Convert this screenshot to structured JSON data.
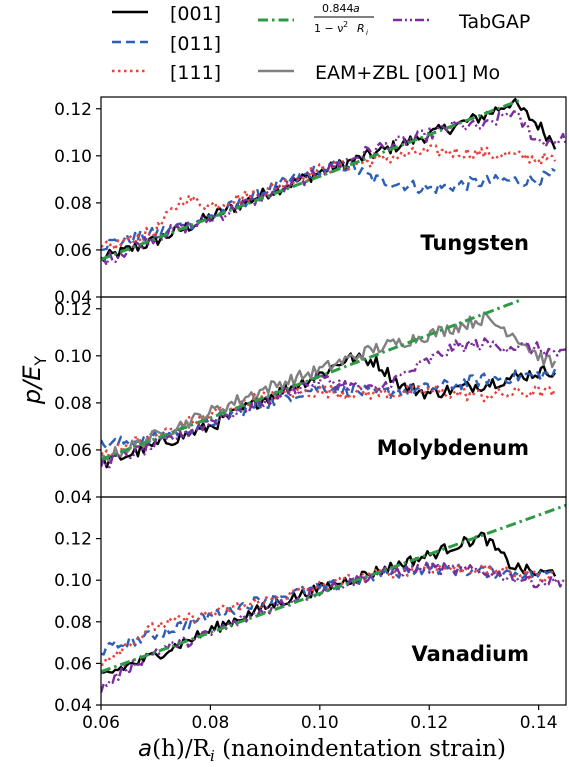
{
  "figure": {
    "ylabel": "p/E",
    "ylabel_sub": "Y",
    "xlabel_main": "a",
    "xlabel_rest": "(h)/R",
    "xlabel_sub": "i",
    "xlabel_tail": " (nanoindentation strain)"
  },
  "legend": {
    "items": [
      {
        "label": "[001]",
        "color": "#000000",
        "dash": "solid"
      },
      {
        "label": "[011]",
        "color": "#2d5fb5",
        "dash": "dashed"
      },
      {
        "label": "[111]",
        "color": "#e8413a",
        "dash": "dotted"
      },
      {
        "label": "",
        "color": "#2e9a44",
        "dash": "dashdot",
        "formula": {
          "num": "0.844",
          "var_num": "a",
          "den": "1 − ν",
          "sup": "2",
          "var_den": "R",
          "var_den_sub": "i"
        }
      },
      {
        "label": "EAM+ZBL [001] Mo",
        "color": "#808080",
        "dash": "solid"
      },
      {
        "label": "TabGAP",
        "color": "#7b2d9b",
        "dash": "dashdotdot"
      }
    ]
  },
  "chart_data": [
    {
      "type": "line",
      "label": "Tungsten",
      "xlim": [
        0.06,
        0.145
      ],
      "ylim": [
        0.04,
        0.125
      ],
      "yticks": [
        "0.04",
        "0.06",
        "0.08",
        "0.10",
        "0.12"
      ],
      "series": [
        {
          "name": "[001]",
          "color": "#000000",
          "dash": "solid",
          "x": [
            0.06,
            0.07,
            0.08,
            0.09,
            0.1,
            0.11,
            0.12,
            0.13,
            0.135,
            0.14,
            0.143
          ],
          "y": [
            0.056,
            0.064,
            0.074,
            0.084,
            0.093,
            0.101,
            0.109,
            0.117,
            0.123,
            0.113,
            0.105
          ]
        },
        {
          "name": "[011]",
          "color": "#2d5fb5",
          "dash": "dashed",
          "x": [
            0.06,
            0.07,
            0.08,
            0.09,
            0.1,
            0.105,
            0.11,
            0.12,
            0.13,
            0.14,
            0.143
          ],
          "y": [
            0.062,
            0.067,
            0.074,
            0.085,
            0.094,
            0.096,
            0.09,
            0.086,
            0.089,
            0.09,
            0.092
          ]
        },
        {
          "name": "[111]",
          "color": "#e8413a",
          "dash": "dotted",
          "x": [
            0.06,
            0.07,
            0.075,
            0.08,
            0.09,
            0.1,
            0.11,
            0.12,
            0.13,
            0.14,
            0.143
          ],
          "y": [
            0.06,
            0.068,
            0.082,
            0.079,
            0.085,
            0.094,
            0.098,
            0.102,
            0.101,
            0.099,
            0.098
          ]
        },
        {
          "name": "TabGAP",
          "color": "#7b2d9b",
          "dash": "dashdotdot",
          "x": [
            0.06,
            0.065,
            0.07,
            0.08,
            0.09,
            0.1,
            0.11,
            0.12,
            0.125,
            0.13,
            0.135,
            0.14,
            0.145
          ],
          "y": [
            0.055,
            0.06,
            0.066,
            0.073,
            0.083,
            0.093,
            0.103,
            0.109,
            0.113,
            0.112,
            0.119,
            0.106,
            0.107
          ]
        },
        {
          "name": "fit",
          "color": "#2e9a44",
          "dash": "dashdot",
          "x": [
            0.06,
            0.137
          ],
          "y": [
            0.056,
            0.124
          ]
        }
      ]
    },
    {
      "type": "line",
      "label": "Molybdenum",
      "xlim": [
        0.06,
        0.145
      ],
      "ylim": [
        0.04,
        0.125
      ],
      "yticks": [
        "0.04",
        "0.06",
        "0.08",
        "0.10",
        "0.12"
      ],
      "series": [
        {
          "name": "[001]",
          "color": "#000000",
          "dash": "solid",
          "x": [
            0.06,
            0.07,
            0.08,
            0.09,
            0.1,
            0.105,
            0.11,
            0.115,
            0.12,
            0.13,
            0.14,
            0.143
          ],
          "y": [
            0.054,
            0.062,
            0.07,
            0.082,
            0.092,
            0.099,
            0.098,
            0.087,
            0.084,
            0.088,
            0.093,
            0.094
          ]
        },
        {
          "name": "[011]",
          "color": "#2d5fb5",
          "dash": "dashed",
          "x": [
            0.06,
            0.07,
            0.08,
            0.09,
            0.1,
            0.11,
            0.12,
            0.13,
            0.14,
            0.143
          ],
          "y": [
            0.062,
            0.065,
            0.072,
            0.08,
            0.087,
            0.084,
            0.086,
            0.09,
            0.092,
            0.092
          ]
        },
        {
          "name": "[111]",
          "color": "#e8413a",
          "dash": "dotted",
          "x": [
            0.06,
            0.07,
            0.08,
            0.09,
            0.1,
            0.11,
            0.12,
            0.13,
            0.14,
            0.143
          ],
          "y": [
            0.058,
            0.066,
            0.075,
            0.083,
            0.085,
            0.084,
            0.085,
            0.083,
            0.085,
            0.084
          ]
        },
        {
          "name": "EAM+ZBL [001] Mo",
          "color": "#808080",
          "dash": "solid",
          "x": [
            0.06,
            0.07,
            0.08,
            0.09,
            0.1,
            0.11,
            0.12,
            0.13,
            0.135,
            0.14,
            0.143
          ],
          "y": [
            0.056,
            0.066,
            0.076,
            0.086,
            0.094,
            0.103,
            0.109,
            0.116,
            0.11,
            0.1,
            0.096
          ]
        },
        {
          "name": "TabGAP",
          "color": "#7b2d9b",
          "dash": "dashdotdot",
          "x": [
            0.06,
            0.07,
            0.08,
            0.09,
            0.1,
            0.11,
            0.12,
            0.125,
            0.13,
            0.14,
            0.145
          ],
          "y": [
            0.054,
            0.062,
            0.072,
            0.081,
            0.09,
            0.085,
            0.098,
            0.104,
            0.105,
            0.103,
            0.1
          ]
        },
        {
          "name": "fit",
          "color": "#2e9a44",
          "dash": "dashdot",
          "x": [
            0.06,
            0.137
          ],
          "y": [
            0.056,
            0.124
          ]
        }
      ]
    },
    {
      "type": "line",
      "label": "Vanadium",
      "xlim": [
        0.06,
        0.145
      ],
      "ylim": [
        0.04,
        0.14
      ],
      "yticks": [
        "0.04",
        "0.06",
        "0.08",
        "0.10",
        "0.12"
      ],
      "series": [
        {
          "name": "[001]",
          "color": "#000000",
          "dash": "solid",
          "x": [
            0.06,
            0.07,
            0.08,
            0.09,
            0.1,
            0.11,
            0.12,
            0.125,
            0.13,
            0.135,
            0.14,
            0.143
          ],
          "y": [
            0.054,
            0.064,
            0.076,
            0.087,
            0.096,
            0.104,
            0.112,
            0.117,
            0.121,
            0.107,
            0.103,
            0.104
          ]
        },
        {
          "name": "[011]",
          "color": "#2d5fb5",
          "dash": "dashed",
          "x": [
            0.06,
            0.07,
            0.08,
            0.09,
            0.1,
            0.11,
            0.12,
            0.13,
            0.14,
            0.143
          ],
          "y": [
            0.066,
            0.074,
            0.083,
            0.091,
            0.096,
            0.102,
            0.106,
            0.104,
            0.103,
            0.104
          ]
        },
        {
          "name": "[111]",
          "color": "#e8413a",
          "dash": "dotted",
          "x": [
            0.06,
            0.07,
            0.08,
            0.09,
            0.1,
            0.11,
            0.12,
            0.13,
            0.14,
            0.143
          ],
          "y": [
            0.061,
            0.078,
            0.084,
            0.09,
            0.097,
            0.103,
            0.106,
            0.105,
            0.102,
            0.102
          ]
        },
        {
          "name": "TabGAP",
          "color": "#7b2d9b",
          "dash": "dashdotdot",
          "x": [
            0.06,
            0.065,
            0.07,
            0.08,
            0.09,
            0.1,
            0.11,
            0.12,
            0.13,
            0.14,
            0.145
          ],
          "y": [
            0.048,
            0.058,
            0.066,
            0.074,
            0.086,
            0.095,
            0.103,
            0.106,
            0.104,
            0.099,
            0.1
          ]
        },
        {
          "name": "fit",
          "color": "#2e9a44",
          "dash": "dashdot",
          "x": [
            0.06,
            0.145
          ],
          "y": [
            0.056,
            0.136
          ]
        }
      ]
    }
  ],
  "xticks": [
    "0.06",
    "0.08",
    "0.10",
    "0.12",
    "0.14"
  ],
  "xtick_values": [
    0.06,
    0.08,
    0.1,
    0.12,
    0.14
  ]
}
